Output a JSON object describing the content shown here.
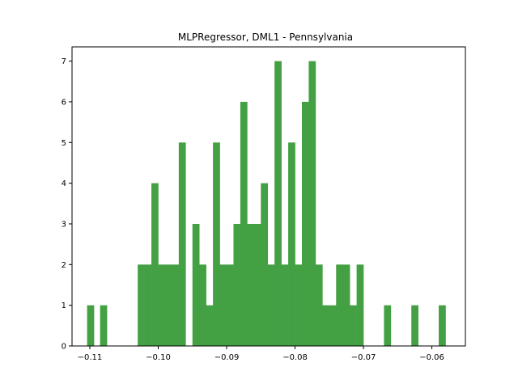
{
  "chart_data": {
    "type": "bar",
    "title": "MLPRegressor, DML1 - Pennsylvania",
    "xlabel": "",
    "ylabel": "",
    "xlim": [
      -0.1126,
      -0.0551
    ],
    "ylim": [
      0,
      7.35
    ],
    "bar_color": "#43a043",
    "grid": false,
    "x_ticks": [
      -0.11,
      -0.1,
      -0.09,
      -0.08,
      -0.07,
      -0.06
    ],
    "x_tick_labels": [
      "−0.11",
      "−0.10",
      "−0.09",
      "−0.08",
      "−0.07",
      "−0.06"
    ],
    "y_ticks": [
      0,
      1,
      2,
      3,
      4,
      5,
      6,
      7
    ],
    "y_tick_labels": [
      "0",
      "1",
      "2",
      "3",
      "4",
      "5",
      "6",
      "7"
    ],
    "bins": [
      {
        "x0": -0.1104,
        "x1": -0.1094,
        "count": 1
      },
      {
        "x0": -0.1085,
        "x1": -0.1075,
        "count": 1
      },
      {
        "x0": -0.103,
        "x1": -0.102,
        "count": 2
      },
      {
        "x0": -0.102,
        "x1": -0.101,
        "count": 2
      },
      {
        "x0": -0.101,
        "x1": -0.1,
        "count": 4
      },
      {
        "x0": -0.1,
        "x1": -0.099,
        "count": 2
      },
      {
        "x0": -0.099,
        "x1": -0.098,
        "count": 2
      },
      {
        "x0": -0.098,
        "x1": -0.097,
        "count": 2
      },
      {
        "x0": -0.097,
        "x1": -0.096,
        "count": 5
      },
      {
        "x0": -0.095,
        "x1": -0.094,
        "count": 3
      },
      {
        "x0": -0.094,
        "x1": -0.093,
        "count": 2
      },
      {
        "x0": -0.093,
        "x1": -0.092,
        "count": 1
      },
      {
        "x0": -0.092,
        "x1": -0.091,
        "count": 5
      },
      {
        "x0": -0.091,
        "x1": -0.09,
        "count": 2
      },
      {
        "x0": -0.09,
        "x1": -0.089,
        "count": 2
      },
      {
        "x0": -0.089,
        "x1": -0.088,
        "count": 3
      },
      {
        "x0": -0.088,
        "x1": -0.087,
        "count": 6
      },
      {
        "x0": -0.087,
        "x1": -0.086,
        "count": 3
      },
      {
        "x0": -0.086,
        "x1": -0.085,
        "count": 3
      },
      {
        "x0": -0.085,
        "x1": -0.084,
        "count": 4
      },
      {
        "x0": -0.084,
        "x1": -0.083,
        "count": 2
      },
      {
        "x0": -0.083,
        "x1": -0.082,
        "count": 7
      },
      {
        "x0": -0.082,
        "x1": -0.081,
        "count": 2
      },
      {
        "x0": -0.081,
        "x1": -0.08,
        "count": 5
      },
      {
        "x0": -0.08,
        "x1": -0.079,
        "count": 2
      },
      {
        "x0": -0.079,
        "x1": -0.078,
        "count": 6
      },
      {
        "x0": -0.078,
        "x1": -0.077,
        "count": 7
      },
      {
        "x0": -0.077,
        "x1": -0.076,
        "count": 2
      },
      {
        "x0": -0.076,
        "x1": -0.075,
        "count": 1
      },
      {
        "x0": -0.075,
        "x1": -0.074,
        "count": 1
      },
      {
        "x0": -0.074,
        "x1": -0.073,
        "count": 2
      },
      {
        "x0": -0.073,
        "x1": -0.072,
        "count": 2
      },
      {
        "x0": -0.072,
        "x1": -0.071,
        "count": 1
      },
      {
        "x0": -0.071,
        "x1": -0.07,
        "count": 2
      },
      {
        "x0": -0.067,
        "x1": -0.066,
        "count": 1
      },
      {
        "x0": -0.063,
        "x1": -0.062,
        "count": 1
      },
      {
        "x0": -0.059,
        "x1": -0.058,
        "count": 1
      }
    ]
  }
}
